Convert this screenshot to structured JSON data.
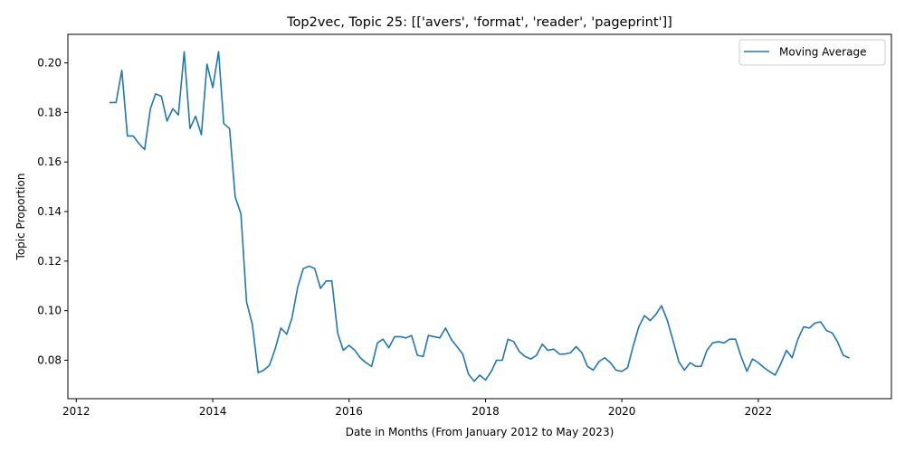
{
  "chart_data": {
    "type": "line",
    "title": "Top2vec, Topic 25: [['avers', 'format', 'reader', 'pageprint']]",
    "xlabel": "Date in Months (From January 2012 to May 2023)",
    "ylabel": "Topic Proportion",
    "xlim": [
      "2011-11-17",
      "2023-12-15"
    ],
    "ylim": [
      0.0645,
      0.2115
    ],
    "x_ticks": [
      "2012",
      "2014",
      "2016",
      "2018",
      "2020",
      "2022"
    ],
    "y_ticks": [
      "0.08",
      "0.10",
      "0.12",
      "0.14",
      "0.16",
      "0.18",
      "0.20"
    ],
    "legend": {
      "position": "top-right",
      "entries": [
        "Moving Average"
      ]
    },
    "grid": false,
    "line_color": "#1f77b4",
    "series": [
      {
        "name": "Moving Average",
        "x": [
          "2012-07",
          "2012-08",
          "2012-09",
          "2012-10",
          "2012-11",
          "2012-12",
          "2013-01",
          "2013-02",
          "2013-03",
          "2013-04",
          "2013-05",
          "2013-06",
          "2013-07",
          "2013-08",
          "2013-09",
          "2013-10",
          "2013-11",
          "2013-12",
          "2014-01",
          "2014-02",
          "2014-03",
          "2014-04",
          "2014-05",
          "2014-06",
          "2014-07",
          "2014-08",
          "2014-09",
          "2014-10",
          "2014-11",
          "2014-12",
          "2015-01",
          "2015-02",
          "2015-03",
          "2015-04",
          "2015-05",
          "2015-06",
          "2015-07",
          "2015-08",
          "2015-09",
          "2015-10",
          "2015-11",
          "2015-12",
          "2016-01",
          "2016-02",
          "2016-03",
          "2016-04",
          "2016-05",
          "2016-06",
          "2016-07",
          "2016-08",
          "2016-09",
          "2016-10",
          "2016-11",
          "2016-12",
          "2017-01",
          "2017-02",
          "2017-03",
          "2017-04",
          "2017-05",
          "2017-06",
          "2017-07",
          "2017-08",
          "2017-09",
          "2017-10",
          "2017-11",
          "2017-12",
          "2018-01",
          "2018-02",
          "2018-03",
          "2018-04",
          "2018-05",
          "2018-06",
          "2018-07",
          "2018-08",
          "2018-09",
          "2018-10",
          "2018-11",
          "2018-12",
          "2019-01",
          "2019-02",
          "2019-03",
          "2019-04",
          "2019-05",
          "2019-06",
          "2019-07",
          "2019-08",
          "2019-09",
          "2019-10",
          "2019-11",
          "2019-12",
          "2020-01",
          "2020-02",
          "2020-03",
          "2020-04",
          "2020-05",
          "2020-06",
          "2020-07",
          "2020-08",
          "2020-09",
          "2020-10",
          "2020-11",
          "2020-12",
          "2021-01",
          "2021-02",
          "2021-03",
          "2021-04",
          "2021-05",
          "2021-06",
          "2021-07",
          "2021-08",
          "2021-09",
          "2021-10",
          "2021-11",
          "2021-12",
          "2022-01",
          "2022-02",
          "2022-03",
          "2022-04",
          "2022-05",
          "2022-06",
          "2022-07",
          "2022-08",
          "2022-09",
          "2022-10",
          "2022-11",
          "2022-12",
          "2023-01",
          "2023-02",
          "2023-03",
          "2023-04",
          "2023-05"
        ],
        "y": [
          0.184,
          0.184,
          0.197,
          0.1705,
          0.1705,
          0.1675,
          0.165,
          0.1815,
          0.1875,
          0.1865,
          0.1765,
          0.1815,
          0.179,
          0.2045,
          0.1735,
          0.1785,
          0.171,
          0.1995,
          0.19,
          0.2045,
          0.1755,
          0.1735,
          0.146,
          0.139,
          0.1035,
          0.0945,
          0.075,
          0.076,
          0.078,
          0.0845,
          0.093,
          0.0905,
          0.097,
          0.1095,
          0.117,
          0.118,
          0.117,
          0.109,
          0.112,
          0.112,
          0.091,
          0.084,
          0.086,
          0.084,
          0.081,
          0.079,
          0.0775,
          0.087,
          0.0885,
          0.085,
          0.0895,
          0.0895,
          0.089,
          0.09,
          0.082,
          0.0815,
          0.09,
          0.0895,
          0.089,
          0.093,
          0.0885,
          0.0855,
          0.0825,
          0.0745,
          0.0715,
          0.074,
          0.072,
          0.0755,
          0.08,
          0.08,
          0.0885,
          0.0875,
          0.0835,
          0.0815,
          0.0805,
          0.082,
          0.0865,
          0.084,
          0.0845,
          0.0825,
          0.0825,
          0.083,
          0.0855,
          0.083,
          0.0775,
          0.076,
          0.0795,
          0.081,
          0.079,
          0.076,
          0.0755,
          0.077,
          0.0855,
          0.0935,
          0.098,
          0.096,
          0.0985,
          0.102,
          0.096,
          0.088,
          0.0795,
          0.076,
          0.079,
          0.0775,
          0.0775,
          0.084,
          0.087,
          0.0875,
          0.087,
          0.0885,
          0.0885,
          0.0815,
          0.0755,
          0.0805,
          0.079,
          0.077,
          0.0755,
          0.074,
          0.0785,
          0.084,
          0.081,
          0.0885,
          0.0935,
          0.093,
          0.095,
          0.0955,
          0.092,
          0.091,
          0.0875,
          0.082,
          0.081
        ]
      }
    ]
  }
}
